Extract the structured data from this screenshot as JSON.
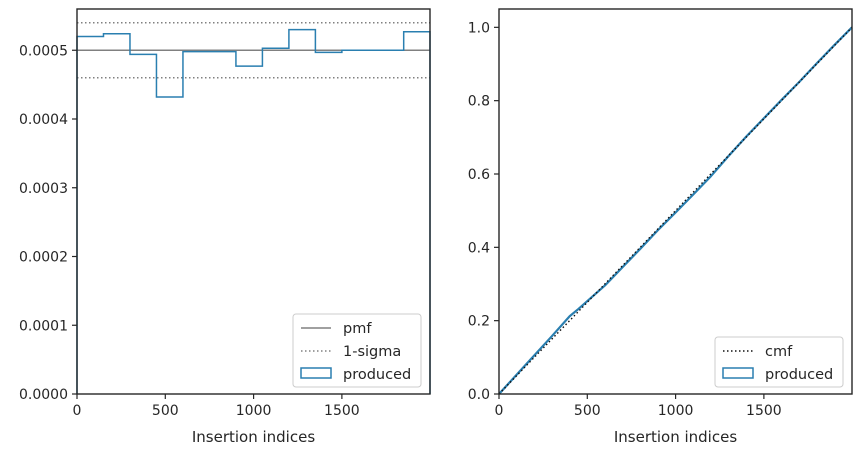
{
  "chart_data": [
    {
      "type": "step",
      "xlabel": "Insertion indices",
      "ylabel": "",
      "xlim": [
        0,
        1999
      ],
      "ylim": [
        0,
        0.00056
      ],
      "xticks": [
        0,
        500,
        1000,
        1500
      ],
      "xtick_labels": [
        "0",
        "500",
        "1000",
        "1500"
      ],
      "yticks": [
        0,
        0.0001,
        0.0002,
        0.0003,
        0.0004,
        0.0005
      ],
      "ytick_labels": [
        "0.0000",
        "0.0001",
        "0.0002",
        "0.0003",
        "0.0004",
        "0.0005"
      ],
      "pmf": 0.0005,
      "sigma_upper": 0.00054,
      "sigma_lower": 0.00046,
      "produced": {
        "bin_edges": [
          0,
          150,
          300,
          450,
          600,
          900,
          1050,
          1200,
          1350,
          1500,
          1850,
          1999
        ],
        "values": [
          0.00052,
          0.000524,
          0.000494,
          0.000432,
          0.000498,
          0.000477,
          0.000503,
          0.00053,
          0.000497,
          0.0005,
          0.000527
        ]
      },
      "legend": {
        "placement": "lower right",
        "entries": [
          {
            "label": "pmf",
            "style": "solid",
            "color": "#808080"
          },
          {
            "label": "1-sigma",
            "style": "dotted",
            "color": "#808080"
          },
          {
            "label": "produced",
            "style": "patch",
            "color": "#2a7fb0"
          }
        ]
      },
      "grid": false
    },
    {
      "type": "line",
      "xlabel": "Insertion indices",
      "ylabel": "",
      "xlim": [
        0,
        1999
      ],
      "ylim": [
        0,
        1.05
      ],
      "xticks": [
        0,
        500,
        1000,
        1500
      ],
      "xtick_labels": [
        "0",
        "500",
        "1000",
        "1500"
      ],
      "yticks": [
        0,
        0.2,
        0.4,
        0.6,
        0.8,
        1.0
      ],
      "ytick_labels": [
        "0.0",
        "0.2",
        "0.4",
        "0.6",
        "0.8",
        "1.0"
      ],
      "cmf": {
        "x": [
          0,
          1999
        ],
        "y": [
          0,
          1.0
        ]
      },
      "produced": {
        "x": [
          0,
          150,
          300,
          400,
          450,
          600,
          700,
          800,
          900,
          1000,
          1100,
          1200,
          1300,
          1400,
          1500,
          1600,
          1700,
          1800,
          1900,
          1999
        ],
        "y": [
          0,
          0.079,
          0.158,
          0.212,
          0.232,
          0.296,
          0.346,
          0.396,
          0.447,
          0.495,
          0.544,
          0.594,
          0.649,
          0.702,
          0.752,
          0.802,
          0.851,
          0.902,
          0.952,
          1.0
        ]
      },
      "legend": {
        "placement": "lower right",
        "entries": [
          {
            "label": "cmf",
            "style": "dotted",
            "color": "#111111"
          },
          {
            "label": "produced",
            "style": "patch",
            "color": "#2a7fb0"
          }
        ]
      },
      "grid": false
    }
  ],
  "colors": {
    "produced": "#2a7fb0",
    "pmf": "#808080",
    "sigma": "#808080",
    "cmf": "#111111",
    "axes": "#262626"
  }
}
